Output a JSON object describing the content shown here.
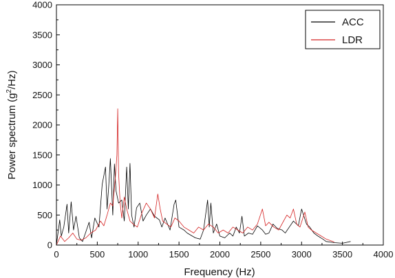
{
  "chart_data": {
    "type": "line",
    "xlabel": "Frequency (Hz)",
    "ylabel_prefix": "Power spectrum (g",
    "ylabel_sup": "2",
    "ylabel_suffix": "/Hz)",
    "xlim": [
      0,
      4000
    ],
    "ylim": [
      0,
      4000
    ],
    "xticks": [
      "0",
      "500",
      "1000",
      "1500",
      "2000",
      "2500",
      "3000",
      "3500",
      "4000"
    ],
    "yticks": [
      "0",
      "500",
      "1000",
      "1500",
      "2000",
      "2500",
      "3000",
      "3500",
      "4000"
    ],
    "legend_position": "top-right",
    "grid": false,
    "series": [
      {
        "name": "ACC",
        "color": "#000000",
        "x": [
          0,
          40,
          60,
          90,
          130,
          150,
          180,
          210,
          240,
          280,
          320,
          400,
          430,
          470,
          520,
          560,
          600,
          620,
          640,
          660,
          690,
          710,
          730,
          760,
          800,
          830,
          860,
          880,
          900,
          920,
          950,
          980,
          1020,
          1060,
          1100,
          1150,
          1200,
          1260,
          1290,
          1330,
          1390,
          1440,
          1460,
          1500,
          1560,
          1600,
          1650,
          1700,
          1760,
          1800,
          1850,
          1870,
          1890,
          1920,
          1960,
          2000,
          2060,
          2120,
          2160,
          2200,
          2240,
          2270,
          2300,
          2350,
          2400,
          2460,
          2520,
          2560,
          2600,
          2650,
          2700,
          2760,
          2800,
          2850,
          2900,
          2960,
          3000,
          3060,
          3100,
          3150,
          3200,
          3260,
          3300,
          3400,
          3500,
          3600
        ],
        "y": [
          0,
          420,
          150,
          300,
          680,
          200,
          720,
          250,
          480,
          120,
          60,
          380,
          120,
          450,
          300,
          1010,
          1300,
          600,
          980,
          1440,
          500,
          1350,
          900,
          700,
          750,
          400,
          1300,
          600,
          1360,
          500,
          300,
          620,
          700,
          400,
          500,
          600,
          480,
          420,
          300,
          450,
          250,
          680,
          750,
          300,
          250,
          200,
          160,
          120,
          100,
          250,
          750,
          300,
          700,
          200,
          350,
          150,
          120,
          200,
          150,
          300,
          200,
          480,
          150,
          200,
          180,
          320,
          250,
          180,
          200,
          350,
          280,
          250,
          200,
          300,
          400,
          320,
          600,
          350,
          300,
          200,
          150,
          100,
          60,
          40,
          30,
          60
        ]
      },
      {
        "name": "LDR",
        "color": "#d42020",
        "x": [
          0,
          50,
          100,
          150,
          200,
          250,
          300,
          360,
          420,
          480,
          540,
          580,
          620,
          660,
          690,
          720,
          740,
          750,
          760,
          780,
          800,
          830,
          860,
          900,
          940,
          990,
          1050,
          1100,
          1150,
          1200,
          1240,
          1270,
          1300,
          1350,
          1400,
          1450,
          1500,
          1560,
          1620,
          1680,
          1740,
          1800,
          1860,
          1920,
          1980,
          2040,
          2100,
          2160,
          2220,
          2280,
          2340,
          2400,
          2460,
          2520,
          2560,
          2600,
          2660,
          2720,
          2780,
          2820,
          2860,
          2900,
          2940,
          2980,
          3040,
          3080,
          3120,
          3180,
          3240,
          3300,
          3400
        ],
        "y": [
          0,
          150,
          60,
          120,
          200,
          100,
          80,
          120,
          200,
          250,
          400,
          320,
          500,
          700,
          650,
          1100,
          1500,
          2270,
          1200,
          700,
          450,
          800,
          600,
          400,
          350,
          300,
          550,
          700,
          600,
          450,
          850,
          600,
          400,
          350,
          300,
          450,
          400,
          300,
          250,
          200,
          300,
          250,
          350,
          300,
          200,
          250,
          200,
          300,
          250,
          200,
          300,
          250,
          350,
          600,
          320,
          380,
          300,
          250,
          400,
          500,
          450,
          600,
          350,
          300,
          550,
          300,
          250,
          200,
          150,
          100,
          50
        ]
      }
    ]
  }
}
